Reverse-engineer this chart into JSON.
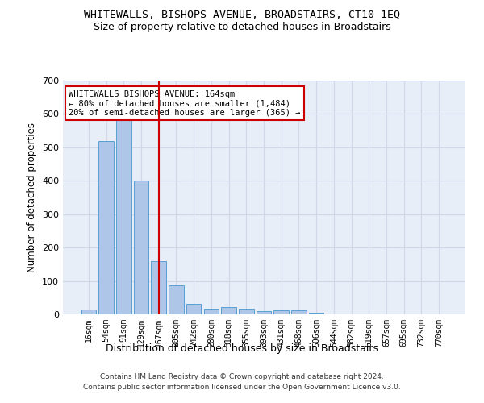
{
  "title": "WHITEWALLS, BISHOPS AVENUE, BROADSTAIRS, CT10 1EQ",
  "subtitle": "Size of property relative to detached houses in Broadstairs",
  "xlabel": "Distribution of detached houses by size in Broadstairs",
  "ylabel": "Number of detached properties",
  "bar_labels": [
    "16sqm",
    "54sqm",
    "91sqm",
    "129sqm",
    "167sqm",
    "205sqm",
    "242sqm",
    "280sqm",
    "318sqm",
    "355sqm",
    "393sqm",
    "431sqm",
    "468sqm",
    "506sqm",
    "544sqm",
    "582sqm",
    "619sqm",
    "657sqm",
    "695sqm",
    "732sqm",
    "770sqm"
  ],
  "bar_values": [
    15,
    520,
    585,
    400,
    160,
    88,
    32,
    18,
    22,
    18,
    10,
    13,
    12,
    5,
    0,
    0,
    0,
    0,
    0,
    0,
    0
  ],
  "bar_color": "#aec6e8",
  "bar_edgecolor": "#5a9fd4",
  "vline_color": "#cc0000",
  "annotation_text": "WHITEWALLS BISHOPS AVENUE: 164sqm\n← 80% of detached houses are smaller (1,484)\n20% of semi-detached houses are larger (365) →",
  "annotation_box_color": "#ffffff",
  "annotation_box_edgecolor": "#cc0000",
  "ylim": [
    0,
    700
  ],
  "yticks": [
    0,
    100,
    200,
    300,
    400,
    500,
    600,
    700
  ],
  "grid_color": "#d0d8e8",
  "bg_color": "#e8eef8",
  "footer1": "Contains HM Land Registry data © Crown copyright and database right 2024.",
  "footer2": "Contains public sector information licensed under the Open Government Licence v3.0."
}
